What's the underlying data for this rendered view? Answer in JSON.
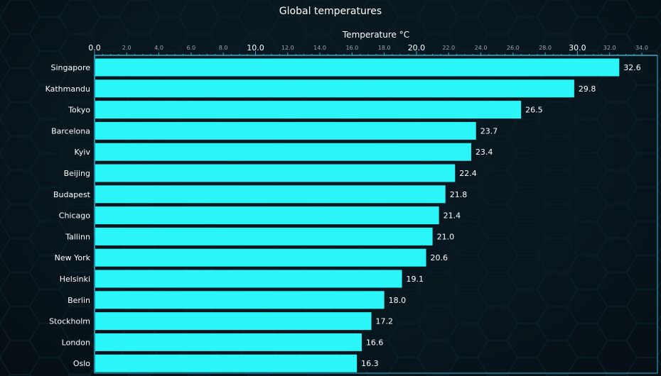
{
  "chart_data": {
    "type": "bar",
    "orientation": "horizontal",
    "title": "Global temperatures",
    "xlabel": "Temperature °C",
    "xlim": [
      0,
      34
    ],
    "major_ticks": [
      "0.0",
      "10.0",
      "20.0",
      "30.0"
    ],
    "minor_ticks": [
      "2.0",
      "4.0",
      "6.0",
      "8.0",
      "12.0",
      "14.0",
      "16.0",
      "18.0",
      "22.0",
      "24.0",
      "26.0",
      "28.0",
      "32.0",
      "34.0"
    ],
    "categories": [
      "Singapore",
      "Kathmandu",
      "Tokyo",
      "Barcelona",
      "Kyiv",
      "Beijing",
      "Budapest",
      "Chicago",
      "Tallinn",
      "New York",
      "Helsinki",
      "Berlin",
      "Stockholm",
      "London",
      "Oslo"
    ],
    "values": [
      32.6,
      29.8,
      26.5,
      23.7,
      23.4,
      22.4,
      21.8,
      21.4,
      21.0,
      20.6,
      19.1,
      18.0,
      17.2,
      16.6,
      16.3
    ],
    "value_labels": [
      "32.6",
      "29.8",
      "26.5",
      "23.7",
      "23.4",
      "22.4",
      "21.8",
      "21.4",
      "21.0",
      "20.6",
      "19.1",
      "18.0",
      "17.2",
      "16.6",
      "16.3"
    ],
    "bar_color": "#2af5f8",
    "axis_color": "#25b6d6",
    "grid": false,
    "legend": "none"
  }
}
